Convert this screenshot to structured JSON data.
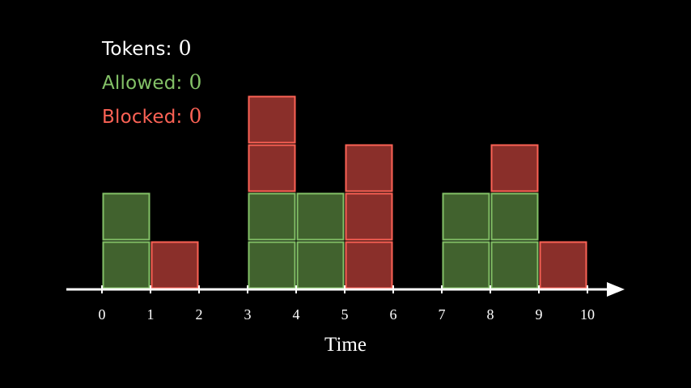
{
  "counters": {
    "tokens": {
      "label": "Tokens:",
      "value": "0",
      "color": "#ffffff"
    },
    "allowed": {
      "label": "Allowed:",
      "value": "0",
      "color": "#83c167"
    },
    "blocked": {
      "label": "Blocked:",
      "value": "0",
      "color": "#fc6255"
    }
  },
  "chart_data": {
    "type": "bar",
    "xlabel": "Time",
    "ylabel": "",
    "title": "",
    "x_ticks": [
      0,
      1,
      2,
      3,
      4,
      5,
      6,
      7,
      8,
      9,
      10
    ],
    "xlim": [
      0,
      10
    ],
    "intervals": [
      {
        "start": 0,
        "allowed": 2,
        "blocked": 0
      },
      {
        "start": 1,
        "allowed": 0,
        "blocked": 1
      },
      {
        "start": 2,
        "allowed": 0,
        "blocked": 0
      },
      {
        "start": 3,
        "allowed": 2,
        "blocked": 2
      },
      {
        "start": 4,
        "allowed": 2,
        "blocked": 0
      },
      {
        "start": 5,
        "allowed": 0,
        "blocked": 3
      },
      {
        "start": 6,
        "allowed": 0,
        "blocked": 0
      },
      {
        "start": 7,
        "allowed": 2,
        "blocked": 0
      },
      {
        "start": 8,
        "allowed": 2,
        "blocked": 1
      },
      {
        "start": 9,
        "allowed": 0,
        "blocked": 1
      }
    ],
    "colors": {
      "allowed_fill": "#41622e",
      "allowed_stroke": "#83c167",
      "blocked_fill": "#8a2f2a",
      "blocked_stroke": "#fc6255",
      "axis": "#ffffff"
    }
  }
}
